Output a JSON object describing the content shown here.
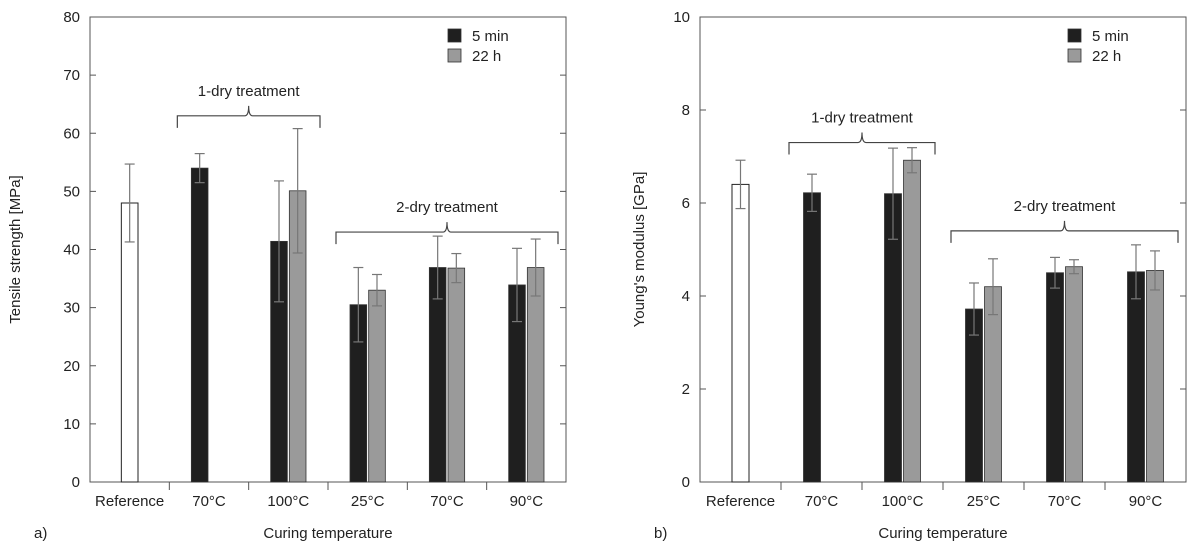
{
  "chart_data": [
    {
      "type": "bar",
      "panel_label": "a)",
      "xlabel": "Curing temperature",
      "ylabel": "Tensile strength [MPa]",
      "ylim": [
        0,
        80
      ],
      "yticks": [
        0,
        10,
        20,
        30,
        40,
        50,
        60,
        70,
        80
      ],
      "grid": false,
      "legend_position": "top-right",
      "categories": [
        "Reference",
        "70°C",
        "100°C",
        "25°C",
        "70°C",
        "90°C"
      ],
      "reference": {
        "value": 48.0,
        "error": 6.7
      },
      "series": [
        {
          "name": "5 min",
          "color": "#1f1f1f",
          "values": [
            null,
            54.0,
            41.4,
            30.5,
            36.9,
            33.9
          ],
          "errors": [
            null,
            2.5,
            10.4,
            6.4,
            5.4,
            6.3
          ]
        },
        {
          "name": "22 h",
          "color": "#9a9a9a",
          "values": [
            null,
            null,
            50.1,
            33.0,
            36.8,
            36.9
          ],
          "errors": [
            null,
            null,
            10.7,
            2.7,
            2.5,
            4.9
          ]
        }
      ],
      "annotations": [
        {
          "text": "1-dry treatment",
          "from": 1,
          "to": 2,
          "y": 63
        },
        {
          "text": "2-dry treatment",
          "from": 3,
          "to": 5,
          "y": 43
        }
      ]
    },
    {
      "type": "bar",
      "panel_label": "b)",
      "xlabel": "Curing temperature",
      "ylabel": "Young's modulus [GPa]",
      "ylim": [
        0,
        10
      ],
      "yticks": [
        0,
        2,
        4,
        6,
        8,
        10
      ],
      "grid": false,
      "legend_position": "top-right",
      "categories": [
        "Reference",
        "70°C",
        "100°C",
        "25°C",
        "70°C",
        "90°C"
      ],
      "reference": {
        "value": 6.4,
        "error": 0.52
      },
      "series": [
        {
          "name": "5 min",
          "color": "#1f1f1f",
          "values": [
            null,
            6.22,
            6.2,
            3.72,
            4.5,
            4.52
          ],
          "errors": [
            null,
            0.4,
            0.98,
            0.56,
            0.33,
            0.58
          ]
        },
        {
          "name": "22 h",
          "color": "#9a9a9a",
          "values": [
            null,
            null,
            6.92,
            4.2,
            4.63,
            4.55
          ],
          "errors": [
            null,
            null,
            0.27,
            0.6,
            0.15,
            0.42
          ]
        }
      ],
      "annotations": [
        {
          "text": "1-dry treatment",
          "from": 1,
          "to": 2,
          "y": 7.3
        },
        {
          "text": "2-dry treatment",
          "from": 3,
          "to": 5,
          "y": 5.4
        }
      ]
    }
  ]
}
